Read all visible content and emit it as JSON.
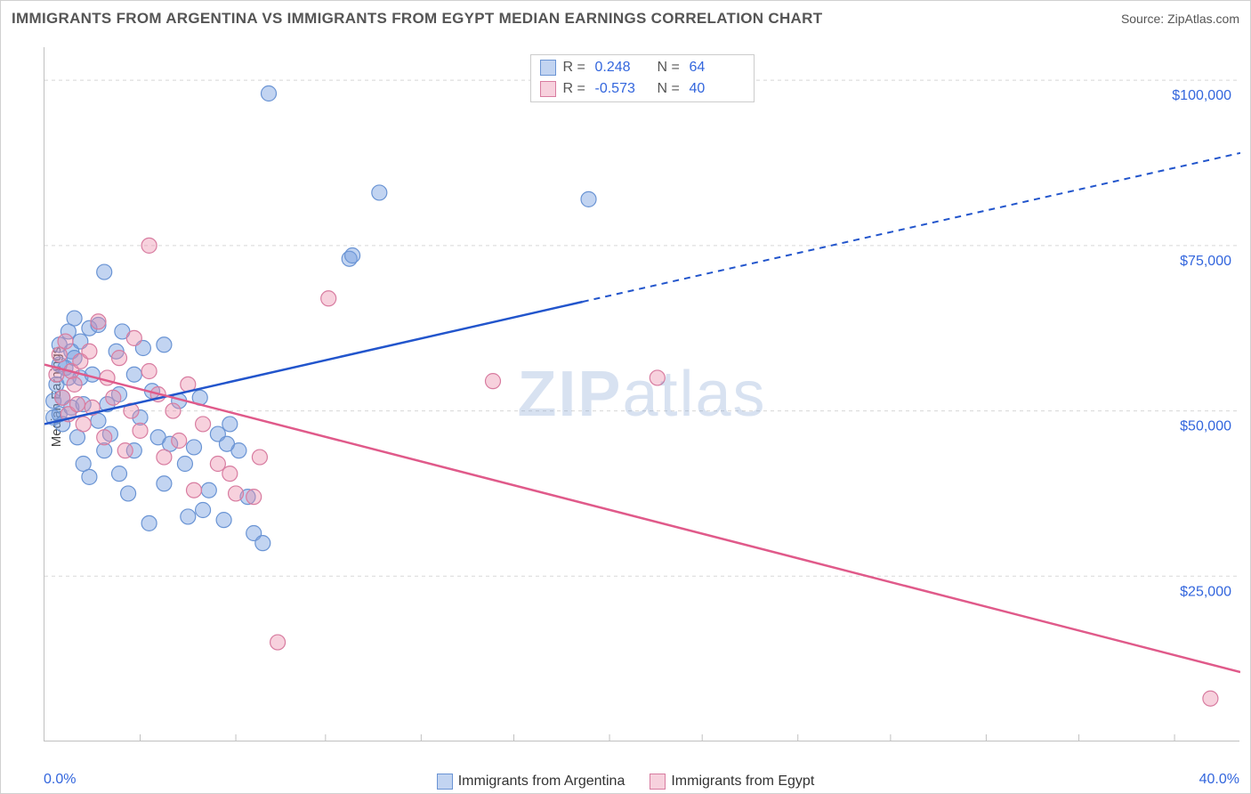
{
  "title": "IMMIGRANTS FROM ARGENTINA VS IMMIGRANTS FROM EGYPT MEDIAN EARNINGS CORRELATION CHART",
  "source": "Source: ZipAtlas.com",
  "watermark_a": "ZIP",
  "watermark_b": "atlas",
  "chart": {
    "type": "scatter",
    "ylabel": "Median Earnings",
    "xmin": 0.0,
    "xmax": 40.0,
    "ymin": 0,
    "ymax": 105000,
    "x_start_label": "0.0%",
    "x_end_label": "40.0%",
    "y_ticks": [
      25000,
      50000,
      75000,
      100000
    ],
    "y_tick_labels": [
      "$25,000",
      "$50,000",
      "$75,000",
      "$100,000"
    ],
    "x_minor_ticks": [
      3.2,
      6.4,
      9.4,
      12.6,
      15.7,
      18.9,
      22.0,
      25.2,
      28.3,
      31.5,
      34.6,
      37.8
    ],
    "grid_color": "#d8d8d8",
    "background_color": "#ffffff",
    "axis_color": "#c0c0c0",
    "series": [
      {
        "name": "Immigrants from Argentina",
        "color_fill": "rgba(120,160,225,0.45)",
        "color_stroke": "#6a94d4",
        "trend_color": "#2255cc",
        "R": "0.248",
        "N": "64",
        "trend": {
          "x1": 0,
          "y1": 48000,
          "x2": 18,
          "y2": 66500,
          "x2_ext": 40,
          "y2_ext": 89000
        },
        "points": [
          [
            0.3,
            49000
          ],
          [
            0.3,
            51500
          ],
          [
            0.4,
            54000
          ],
          [
            0.5,
            57000
          ],
          [
            0.5,
            60000
          ],
          [
            0.5,
            49500
          ],
          [
            0.6,
            52000
          ],
          [
            0.6,
            48000
          ],
          [
            0.7,
            56500
          ],
          [
            0.8,
            62000
          ],
          [
            0.8,
            55000
          ],
          [
            0.9,
            50500
          ],
          [
            0.9,
            59000
          ],
          [
            1.0,
            58000
          ],
          [
            1.0,
            64000
          ],
          [
            1.1,
            46000
          ],
          [
            1.2,
            55000
          ],
          [
            1.2,
            60500
          ],
          [
            1.3,
            42000
          ],
          [
            1.3,
            51000
          ],
          [
            1.5,
            62500
          ],
          [
            1.5,
            40000
          ],
          [
            1.6,
            55500
          ],
          [
            1.8,
            63000
          ],
          [
            1.8,
            48500
          ],
          [
            2.0,
            71000
          ],
          [
            2.0,
            44000
          ],
          [
            2.1,
            51000
          ],
          [
            2.2,
            46500
          ],
          [
            2.4,
            59000
          ],
          [
            2.5,
            40500
          ],
          [
            2.5,
            52500
          ],
          [
            2.6,
            62000
          ],
          [
            2.8,
            37500
          ],
          [
            3.0,
            44000
          ],
          [
            3.0,
            55500
          ],
          [
            3.2,
            49000
          ],
          [
            3.3,
            59500
          ],
          [
            3.5,
            33000
          ],
          [
            3.6,
            53000
          ],
          [
            3.8,
            46000
          ],
          [
            4.0,
            39000
          ],
          [
            4.0,
            60000
          ],
          [
            4.2,
            45000
          ],
          [
            4.5,
            51500
          ],
          [
            4.8,
            34000
          ],
          [
            5.0,
            44500
          ],
          [
            5.2,
            52000
          ],
          [
            5.5,
            38000
          ],
          [
            5.8,
            46500
          ],
          [
            6.0,
            33500
          ],
          [
            6.2,
            48000
          ],
          [
            6.5,
            44000
          ],
          [
            7.0,
            31500
          ],
          [
            6.1,
            45000
          ],
          [
            6.8,
            37000
          ],
          [
            7.3,
            30000
          ],
          [
            7.5,
            98000
          ],
          [
            10.2,
            73000
          ],
          [
            10.3,
            73500
          ],
          [
            11.2,
            83000
          ],
          [
            18.2,
            82000
          ],
          [
            5.3,
            35000
          ],
          [
            4.7,
            42000
          ]
        ]
      },
      {
        "name": "Immigrants from Egypt",
        "color_fill": "rgba(235,140,170,0.40)",
        "color_stroke": "#d87ca0",
        "trend_color": "#e05a8a",
        "R": "-0.573",
        "N": "40",
        "trend": {
          "x1": 0,
          "y1": 57000,
          "x2": 40,
          "y2": 10500
        },
        "points": [
          [
            0.4,
            55500
          ],
          [
            0.5,
            58500
          ],
          [
            0.6,
            52000
          ],
          [
            0.7,
            60500
          ],
          [
            0.8,
            49500
          ],
          [
            0.9,
            56000
          ],
          [
            1.0,
            54000
          ],
          [
            1.1,
            51000
          ],
          [
            1.2,
            57500
          ],
          [
            1.3,
            48000
          ],
          [
            1.5,
            59000
          ],
          [
            1.6,
            50500
          ],
          [
            1.8,
            63500
          ],
          [
            2.0,
            46000
          ],
          [
            2.1,
            55000
          ],
          [
            2.3,
            52000
          ],
          [
            2.5,
            58000
          ],
          [
            2.7,
            44000
          ],
          [
            2.9,
            50000
          ],
          [
            3.0,
            61000
          ],
          [
            3.2,
            47000
          ],
          [
            3.5,
            56000
          ],
          [
            3.5,
            75000
          ],
          [
            3.8,
            52500
          ],
          [
            4.0,
            43000
          ],
          [
            4.3,
            50000
          ],
          [
            4.5,
            45500
          ],
          [
            4.8,
            54000
          ],
          [
            5.0,
            38000
          ],
          [
            5.3,
            48000
          ],
          [
            5.8,
            42000
          ],
          [
            6.2,
            40500
          ],
          [
            6.4,
            37500
          ],
          [
            7.0,
            37000
          ],
          [
            7.2,
            43000
          ],
          [
            7.8,
            15000
          ],
          [
            9.5,
            67000
          ],
          [
            15.0,
            54500
          ],
          [
            20.5,
            55000
          ],
          [
            39.0,
            6500
          ]
        ]
      }
    ],
    "legend_labels": {
      "r_eq": "R =",
      "n_eq": "N ="
    }
  }
}
